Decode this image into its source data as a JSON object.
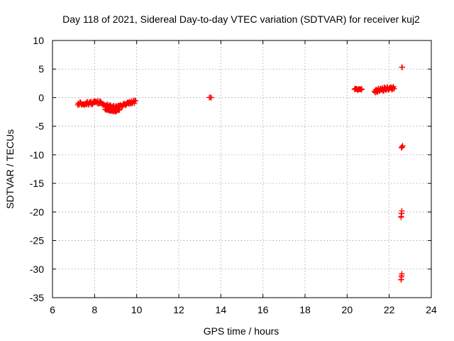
{
  "chart_data": {
    "type": "scatter",
    "title": "Day 118 of 2021, Sidereal Day-to-day VTEC variation (SDTVAR) for receiver kuj2",
    "xlabel": "GPS time / hours",
    "ylabel": "SDTVAR / TECUs",
    "xlim": [
      6,
      24
    ],
    "ylim": [
      -35,
      10
    ],
    "xticks": [
      "6",
      "8",
      "10",
      "12",
      "14",
      "16",
      "18",
      "20",
      "22",
      "24"
    ],
    "yticks": [
      "10",
      "5",
      "0",
      "-5",
      "-10",
      "-15",
      "-20",
      "-25",
      "-30",
      "-35"
    ],
    "grid": true,
    "marker": "plus",
    "color": "#ff0000",
    "segments": [
      {
        "name": "cluster-7-10h",
        "x_start": 7.2,
        "x_end": 9.95,
        "step": 0.025,
        "profile": [
          [
            7.2,
            -1.0
          ],
          [
            7.6,
            -1.0
          ],
          [
            8.0,
            -0.9
          ],
          [
            8.2,
            -0.8
          ],
          [
            8.5,
            -1.3
          ],
          [
            8.8,
            -1.6
          ],
          [
            9.1,
            -1.7
          ],
          [
            9.4,
            -1.3
          ],
          [
            9.7,
            -0.8
          ],
          [
            9.95,
            -0.7
          ]
        ],
        "spread": 0.6
      },
      {
        "name": "cluster-8.5-9.2h-low",
        "x_start": 8.5,
        "x_end": 9.2,
        "step": 0.03,
        "profile": [
          [
            8.5,
            -2.0
          ],
          [
            8.8,
            -2.3
          ],
          [
            9.0,
            -2.4
          ],
          [
            9.2,
            -2.1
          ]
        ],
        "spread": 0.3
      },
      {
        "name": "point-13.5h",
        "x_start": 13.45,
        "x_end": 13.55,
        "step": 0.05,
        "profile": [
          [
            13.45,
            0.0
          ],
          [
            13.55,
            0.0
          ]
        ],
        "spread": 0.1
      },
      {
        "name": "cluster-20.4-20.7h",
        "x_start": 20.35,
        "x_end": 20.7,
        "step": 0.025,
        "profile": [
          [
            20.35,
            1.5
          ],
          [
            20.7,
            1.4
          ]
        ],
        "spread": 0.3
      },
      {
        "name": "cluster-21.3-22.2h",
        "x_start": 21.3,
        "x_end": 22.25,
        "step": 0.02,
        "profile": [
          [
            21.3,
            1.0
          ],
          [
            21.6,
            1.4
          ],
          [
            22.0,
            1.6
          ],
          [
            22.25,
            1.7
          ]
        ],
        "spread": 0.7
      },
      {
        "name": "point-22.6h-top",
        "x_start": 22.6,
        "x_end": 22.62,
        "step": 0.02,
        "profile": [
          [
            22.6,
            5.3
          ],
          [
            22.62,
            5.3
          ]
        ],
        "spread": 0.1
      },
      {
        "name": "point-22.6h-minus8",
        "x_start": 22.58,
        "x_end": 22.64,
        "step": 0.02,
        "profile": [
          [
            22.58,
            -8.8
          ],
          [
            22.64,
            -8.4
          ]
        ],
        "spread": 0.2
      },
      {
        "name": "stack-22.6h-minus20",
        "x_start": 22.56,
        "x_end": 22.6,
        "step": 0.01,
        "profile": [
          [
            22.56,
            -21.0
          ],
          [
            22.6,
            -19.8
          ]
        ],
        "spread": 0.3
      },
      {
        "name": "stack-22.6h-minus31",
        "x_start": 22.56,
        "x_end": 22.6,
        "step": 0.01,
        "profile": [
          [
            22.56,
            -32.0
          ],
          [
            22.6,
            -30.8
          ]
        ],
        "spread": 0.3
      }
    ]
  }
}
